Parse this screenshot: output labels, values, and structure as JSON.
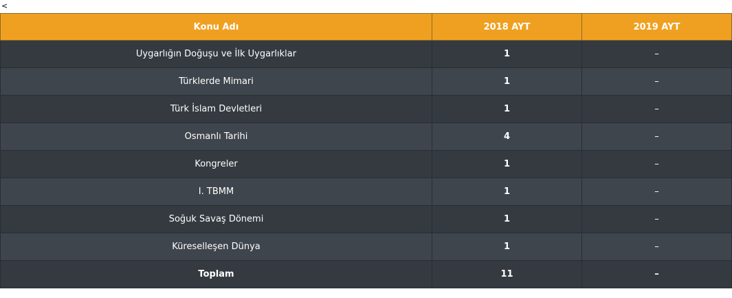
{
  "back_glyph": "<",
  "table": {
    "headers": [
      "Konu Adı",
      "2018 AYT",
      "2019 AYT"
    ],
    "rows": [
      [
        "Uygarlığın Doğuşu ve İlk Uygarlıklar",
        "1",
        "–"
      ],
      [
        "Türklerde Mimari",
        "1",
        "–"
      ],
      [
        "Türk İslam Devletleri",
        "1",
        "–"
      ],
      [
        "Osmanlı Tarihi",
        "4",
        "–"
      ],
      [
        "Kongreler",
        "1",
        "–"
      ],
      [
        "I. TBMM",
        "1",
        "–"
      ],
      [
        "Soğuk Savaş Dönemi",
        "1",
        "–"
      ],
      [
        "Küreselleşen Dünya",
        "1",
        "–"
      ]
    ],
    "total": [
      "Toplam",
      "11",
      "–"
    ]
  },
  "colors": {
    "header_bg": "#f0a020",
    "row_dark": "#343a40",
    "row_light": "#3f454c",
    "text": "#ffffff"
  }
}
